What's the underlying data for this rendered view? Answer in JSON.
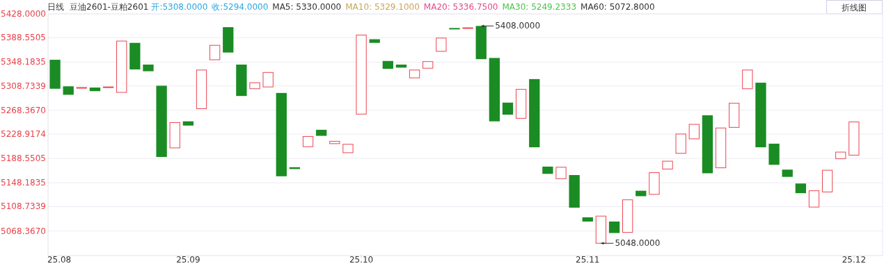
{
  "chart_data": {
    "type": "candlestick",
    "title": "日线",
    "subtitle": "豆油2601-豆粕2601",
    "annotations": [
      "开:5308.0000",
      "收:5294.0000",
      "MA5: 5330.0000",
      "MA10: 5329.1000",
      "MA20: 5336.7500",
      "MA30: 5249.2333",
      "MA60: 5072.8000",
      "折线图",
      "5408.0000",
      "5048.0000"
    ],
    "categories": [
      "25.08",
      null,
      null,
      null,
      null,
      null,
      null,
      null,
      null,
      null,
      "25.09",
      null,
      null,
      null,
      null,
      null,
      null,
      null,
      null,
      null,
      null,
      null,
      null,
      "25.10",
      null,
      null,
      null,
      null,
      null,
      null,
      null,
      null,
      null,
      null,
      null,
      null,
      null,
      null,
      null,
      null,
      "25.11",
      null,
      null,
      null,
      null,
      null,
      null,
      null,
      null,
      null,
      null,
      null,
      null,
      null,
      null,
      null,
      null,
      null,
      null,
      null,
      "25.12"
    ],
    "ohlc": [
      [
        5352,
        5352,
        5304,
        5304
      ],
      [
        5308,
        5308,
        5294,
        5294
      ],
      [
        5306,
        5306,
        5306,
        5306
      ],
      [
        5306,
        5306,
        5300,
        5300
      ],
      [
        5307,
        5307,
        5307,
        5307
      ],
      [
        5298,
        5383,
        5298,
        5383
      ],
      [
        5380,
        5380,
        5336,
        5336
      ],
      [
        5344,
        5344,
        5333,
        5333
      ],
      [
        5309,
        5309,
        5191,
        5191
      ],
      [
        5206,
        5248,
        5206,
        5248
      ],
      [
        5250,
        5250,
        5243,
        5243
      ],
      [
        5271,
        5335,
        5271,
        5335
      ],
      [
        5352,
        5376,
        5352,
        5376
      ],
      [
        5406,
        5406,
        5364,
        5364
      ],
      [
        5344,
        5344,
        5292,
        5292
      ],
      [
        5304,
        5314,
        5304,
        5314
      ],
      [
        5307,
        5331,
        5307,
        5331
      ],
      [
        5297,
        5297,
        5159,
        5159
      ],
      [
        5174,
        5174,
        5171,
        5171
      ],
      [
        5208,
        5225,
        5208,
        5225
      ],
      [
        5236,
        5236,
        5226,
        5226
      ],
      [
        5213,
        5217,
        5213,
        5217
      ],
      [
        5198,
        5212,
        5198,
        5212
      ],
      [
        5262,
        5393,
        5262,
        5393
      ],
      [
        5386,
        5386,
        5380,
        5380
      ],
      [
        5350,
        5350,
        5337,
        5337
      ],
      [
        5344,
        5344,
        5339,
        5339
      ],
      [
        5322,
        5335,
        5322,
        5335
      ],
      [
        5338,
        5349,
        5338,
        5349
      ],
      [
        5366,
        5388,
        5366,
        5388
      ],
      [
        5404,
        5404,
        5404,
        5404
      ],
      [
        5405,
        5405,
        5405,
        5405
      ],
      [
        5408,
        5408,
        5353,
        5353
      ],
      [
        5355,
        5355,
        5250,
        5250
      ],
      [
        5281,
        5281,
        5261,
        5261
      ],
      [
        5255,
        5303,
        5255,
        5303
      ],
      [
        5320,
        5320,
        5207,
        5207
      ],
      [
        5175,
        5175,
        5163,
        5163
      ],
      [
        5155,
        5174,
        5155,
        5174
      ],
      [
        5161,
        5161,
        5107,
        5107
      ],
      [
        5091,
        5091,
        5084,
        5084
      ],
      [
        5048,
        5093,
        5048,
        5093
      ],
      [
        5084,
        5084,
        5065,
        5065
      ],
      [
        5066,
        5120,
        5066,
        5120
      ],
      [
        5135,
        5135,
        5126,
        5126
      ],
      [
        5129,
        5165,
        5129,
        5165
      ],
      [
        5171,
        5184,
        5171,
        5184
      ],
      [
        5197,
        5229,
        5197,
        5229
      ],
      [
        5221,
        5245,
        5221,
        5245
      ],
      [
        5260,
        5260,
        5164,
        5164
      ],
      [
        5173,
        5239,
        5173,
        5239
      ],
      [
        5240,
        5280,
        5240,
        5280
      ],
      [
        5304,
        5335,
        5304,
        5335
      ],
      [
        5314,
        5314,
        5207,
        5207
      ],
      [
        5213,
        5213,
        5178,
        5178
      ],
      [
        5170,
        5170,
        5158,
        5158
      ],
      [
        5147,
        5147,
        5131,
        5131
      ],
      [
        5108,
        5135,
        5108,
        5135
      ],
      [
        5133,
        5169,
        5133,
        5169
      ],
      [
        5188,
        5199,
        5188,
        5199
      ],
      [
        5194,
        5249,
        5194,
        5249
      ]
    ],
    "colors": [
      "#1a8c23",
      "#1a8c23",
      "#eb4452",
      "#1a8c23",
      "#eb4452",
      "#eb4452",
      "#1a8c23",
      "#1a8c23",
      "#1a8c23",
      "#eb4452",
      "#1a8c23",
      "#eb4452",
      "#eb4452",
      "#1a8c23",
      "#1a8c23",
      "#eb4452",
      "#eb4452",
      "#1a8c23",
      "#1a8c23",
      "#eb4452",
      "#1a8c23",
      "#eb4452",
      "#eb4452",
      "#eb4452",
      "#1a8c23",
      "#1a8c23",
      "#1a8c23",
      "#eb4452",
      "#eb4452",
      "#eb4452",
      "#1a8c23",
      "#eb4452",
      "#1a8c23",
      "#1a8c23",
      "#1a8c23",
      "#eb4452",
      "#1a8c23",
      "#1a8c23",
      "#eb4452",
      "#1a8c23",
      "#1a8c23",
      "#eb4452",
      "#1a8c23",
      "#eb4452",
      "#1a8c23",
      "#eb4452",
      "#eb4452",
      "#eb4452",
      "#eb4452",
      "#1a8c23",
      "#eb4452",
      "#eb4452",
      "#eb4452",
      "#1a8c23",
      "#1a8c23",
      "#1a8c23",
      "#1a8c23",
      "#eb4452",
      "#eb4452",
      "#eb4452",
      "#eb4452"
    ],
    "ylim": [
      5027.6,
      5428
    ],
    "yticks": [
      {
        "value": 5428,
        "label": "5428.0000"
      },
      {
        "value": 5388.5505,
        "label": "5388.5505"
      },
      {
        "value": 5348.1835,
        "label": "5348.1835"
      },
      {
        "value": 5308.7339,
        "label": "5308.7339"
      },
      {
        "value": 5268.367,
        "label": "5268.3670"
      },
      {
        "value": 5228.9174,
        "label": "5228.9174"
      },
      {
        "value": 5188.5505,
        "label": "5188.5505"
      },
      {
        "value": 5148.1835,
        "label": "5148.1835"
      },
      {
        "value": 5108.7339,
        "label": "5108.7339"
      },
      {
        "value": 5068.367,
        "label": "5068.3670"
      }
    ],
    "grid": "y"
  }
}
